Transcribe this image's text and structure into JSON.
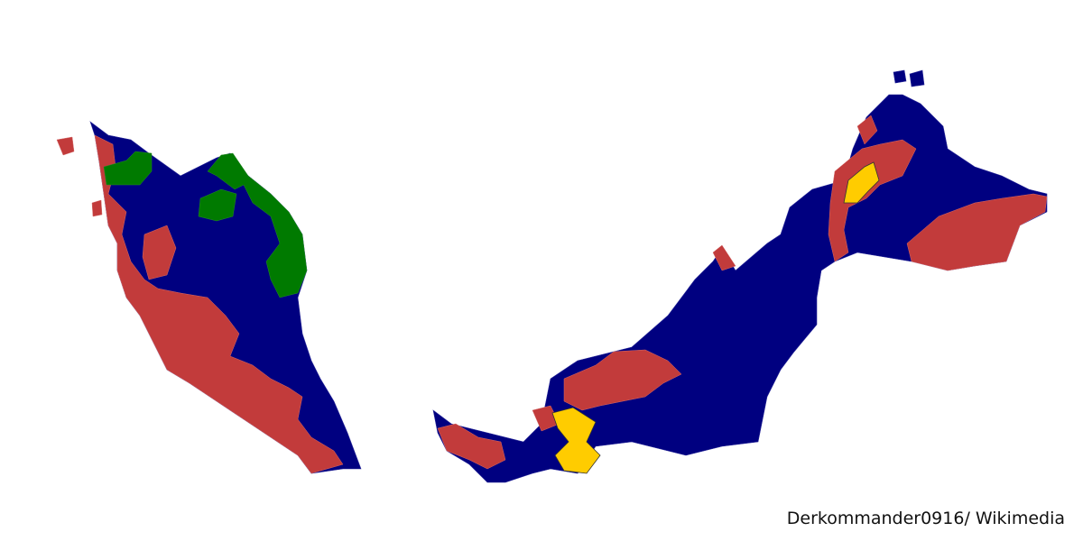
{
  "credit": "Derkommander0916/ Wikimedia"
}
